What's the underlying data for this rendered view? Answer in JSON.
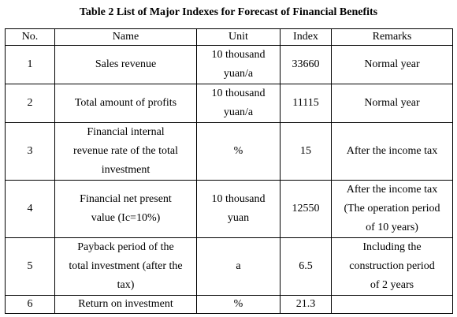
{
  "caption": "Table 2 List of Major Indexes for Forecast of Financial Benefits",
  "headers": [
    "No.",
    "Name",
    "Unit",
    "Index",
    "Remarks"
  ],
  "rows": [
    {
      "no": "1",
      "name": "Sales revenue",
      "unit": "10 thousand\nyuan/a",
      "index": "33660",
      "remarks": "Normal year"
    },
    {
      "no": "2",
      "name": "Total amount of profits",
      "unit": "10 thousand\nyuan/a",
      "index": "11115",
      "remarks": "Normal year"
    },
    {
      "no": "3",
      "name": "Financial internal\nrevenue rate of the total\ninvestment",
      "unit": "%",
      "index": "15",
      "remarks": "After the income tax"
    },
    {
      "no": "4",
      "name": "Financial net present\nvalue (Ic=10%)",
      "unit": "10 thousand\nyuan",
      "index": "12550",
      "remarks": "After the income tax\n(The operation period\nof 10 years)"
    },
    {
      "no": "5",
      "name": "Payback period of the\ntotal investment (after the\ntax)",
      "unit": "a",
      "index": "6.5",
      "remarks": "Including the\nconstruction period\nof 2 years"
    },
    {
      "no": "6",
      "name": "Return on investment",
      "unit": "%",
      "index": "21.3",
      "remarks": ""
    }
  ]
}
